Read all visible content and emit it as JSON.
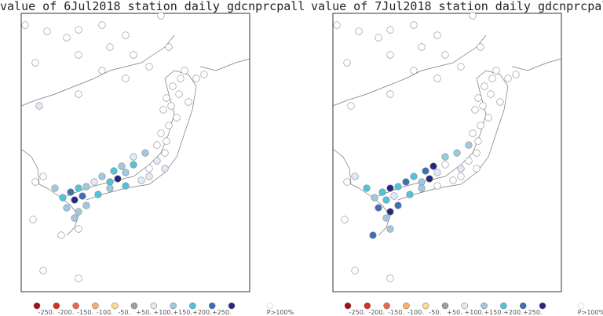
{
  "panels": [
    {
      "title": "value of 6Jul2018 station daily gdcnprcpall"
    },
    {
      "title": "value of 7Jul2018 station daily gdcnprcpall"
    }
  ],
  "legend": {
    "colors": [
      "#a50f15",
      "#d7301f",
      "#ef6548",
      "#fdae6b",
      "#fed98e",
      "#a0a0a0",
      "#deebf7",
      "#9ecae1",
      "#4fc3d9",
      "#3f6fb5",
      "#252a80"
    ],
    "labels": [
      "-250.",
      "-200.",
      "-150.",
      "-100.",
      "-50.",
      "+50.",
      "+100.",
      "+150.",
      "+200.",
      "+250."
    ],
    "extra_color": "#ffffff",
    "extra_label": "P>100%"
  }
}
